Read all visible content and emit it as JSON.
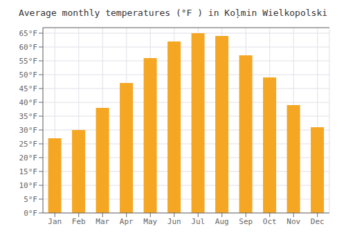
{
  "chart_data": {
    "type": "bar",
    "title": "Average monthly temperatures (°F ) in Koļmin Wielkopolski",
    "categories": [
      "Jan",
      "Feb",
      "Mar",
      "Apr",
      "May",
      "Jun",
      "Jul",
      "Aug",
      "Sep",
      "Oct",
      "Nov",
      "Dec"
    ],
    "values": [
      27,
      30,
      38,
      47,
      56,
      62,
      65,
      64,
      57,
      49,
      39,
      31
    ],
    "color": "#F5A623",
    "ylim": [
      0,
      67
    ],
    "yticks": [
      {
        "value": 0,
        "label": "0°F"
      },
      {
        "value": 5,
        "label": "5°F"
      },
      {
        "value": 10,
        "label": "10°F"
      },
      {
        "value": 15,
        "label": "15°F"
      },
      {
        "value": 20,
        "label": "20°F"
      },
      {
        "value": 25,
        "label": "25°F"
      },
      {
        "value": 30,
        "label": "30°F"
      },
      {
        "value": 35,
        "label": "35°F"
      },
      {
        "value": 40,
        "label": "40°F"
      },
      {
        "value": 45,
        "label": "45°F"
      },
      {
        "value": 50,
        "label": "50°F"
      },
      {
        "value": 55,
        "label": "55°F"
      },
      {
        "value": 60,
        "label": "60°F"
      },
      {
        "value": 65,
        "label": "65°F"
      }
    ],
    "grid": true
  }
}
